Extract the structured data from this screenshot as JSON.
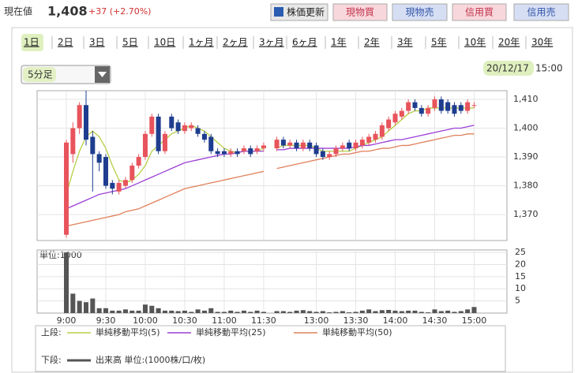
{
  "header": {
    "label": "現在値",
    "price": "1,408",
    "change": "+37 (+2.70%)"
  },
  "buttons": [
    "株価更新",
    "現物買",
    "現物売",
    "信用買",
    "信用売"
  ],
  "tabs": [
    "1日",
    "2日",
    "3日",
    "5日",
    "10日",
    "1ヶ月",
    "2ヶ月",
    "3ヶ月",
    "6ヶ月",
    "1年",
    "2年",
    "3年",
    "5年",
    "10年",
    "20年",
    "30年"
  ],
  "interval": "5分足",
  "date": "20/12/17",
  "time": "15:00",
  "chart_data": {
    "type": "candlestick",
    "categories": [
      "9:00",
      null,
      null,
      null,
      null,
      null,
      "9:30",
      null,
      null,
      null,
      null,
      null,
      "10:00",
      null,
      null,
      null,
      null,
      null,
      "10:30",
      null,
      null,
      null,
      null,
      null,
      "11:00",
      null,
      null,
      null,
      null,
      null,
      "11:30",
      null,
      null,
      null,
      null,
      null,
      null,
      null,
      "13:00",
      null,
      null,
      null,
      null,
      null,
      "13:30",
      null,
      null,
      null,
      null,
      null,
      "14:00",
      null,
      null,
      null,
      null,
      null,
      "14:30",
      null,
      null,
      null,
      null,
      null,
      "15:00"
    ],
    "open": [
      1363,
      1391,
      1400,
      1408,
      1397,
      1391,
      1390,
      1381,
      1378,
      1380,
      1382,
      1387,
      1390,
      1398,
      1404,
      1392,
      1404,
      1402,
      1399,
      1400,
      1400,
      1398,
      1397,
      1392,
      1392,
      1391,
      1392,
      1392,
      1393,
      1392,
      1393,
      null,
      1393,
      1396,
      1394,
      1395,
      1393,
      1395,
      1394,
      1392,
      1390,
      1391,
      1393,
      1395,
      1393,
      1394,
      1395,
      1396,
      1397,
      1400,
      1402,
      1404,
      1406,
      1409,
      1407,
      1405,
      1407,
      1410,
      1409,
      1408,
      1408,
      1406,
      1408
    ],
    "high": [
      1396,
      1402,
      1409,
      1413,
      1399,
      1392,
      1391,
      1382,
      1382,
      1383,
      1388,
      1391,
      1399,
      1405,
      1405,
      1399,
      1405,
      1403,
      1402,
      1402,
      1401,
      1399,
      1398,
      1393,
      1393,
      1393,
      1393,
      1394,
      1394,
      1394,
      1395,
      null,
      1397,
      1397,
      1396,
      1396,
      1396,
      1396,
      1395,
      1393,
      1392,
      1394,
      1395,
      1396,
      1396,
      1397,
      1398,
      1399,
      1402,
      1404,
      1406,
      1407,
      1410,
      1410,
      1408,
      1408,
      1411,
      1411,
      1410,
      1409,
      1409,
      1410,
      1409
    ],
    "low": [
      1362,
      1388,
      1398,
      1394,
      1378,
      1385,
      1379,
      1377,
      1377,
      1379,
      1381,
      1386,
      1389,
      1397,
      1391,
      1391,
      1399,
      1398,
      1398,
      1399,
      1397,
      1395,
      1391,
      1390,
      1390,
      1390,
      1390,
      1391,
      1390,
      1391,
      1392,
      null,
      1392,
      1393,
      1393,
      1392,
      1392,
      1392,
      1390,
      1389,
      1389,
      1390,
      1392,
      1392,
      1392,
      1393,
      1394,
      1395,
      1396,
      1399,
      1401,
      1403,
      1405,
      1406,
      1404,
      1404,
      1406,
      1405,
      1405,
      1404,
      1405,
      1405,
      1407
    ],
    "close": [
      1395,
      1400,
      1408,
      1396,
      1391,
      1388,
      1380,
      1379,
      1381,
      1382,
      1387,
      1390,
      1398,
      1404,
      1392,
      1398,
      1400,
      1399,
      1401,
      1401,
      1398,
      1396,
      1392,
      1391,
      1391,
      1392,
      1391,
      1393,
      1391,
      1393,
      1394,
      null,
      1396,
      1394,
      1395,
      1393,
      1395,
      1393,
      1391,
      1390,
      1391,
      1393,
      1394,
      1393,
      1395,
      1396,
      1397,
      1398,
      1401,
      1403,
      1405,
      1406,
      1409,
      1407,
      1405,
      1407,
      1410,
      1406,
      1406,
      1405,
      1406,
      1409,
      1408
    ],
    "up_color": "#e8545c",
    "down_color": "#1e3d8f",
    "ylim": [
      1361,
      1413
    ],
    "yticks": [
      {
        "value": 1370,
        "label": "1,370"
      },
      {
        "value": 1380,
        "label": "1,380"
      },
      {
        "value": 1390,
        "label": "1,390"
      },
      {
        "value": 1400,
        "label": "1,400"
      },
      {
        "value": 1410,
        "label": "1,410"
      }
    ],
    "upper_label": "上段:",
    "series": [
      {
        "name": "単純移動平均(5)",
        "color": "#b5cf45",
        "values": [
          1377,
          1385,
          1392,
          1397,
          1399,
          1397,
          1393,
          1387,
          1382,
          1381,
          1382,
          1384,
          1387,
          1392,
          1394,
          1396,
          1398,
          1399,
          1400,
          1401,
          1400,
          1399,
          1397,
          1395,
          1393,
          1392,
          1391.5,
          1392,
          1392,
          1392,
          1393,
          null,
          1393,
          1394,
          1394,
          1394,
          1394,
          1394,
          1393,
          1392,
          1392,
          1392,
          1392,
          1392,
          1393,
          1394,
          1395,
          1396,
          1397,
          1399,
          1401,
          1403,
          1405,
          1406,
          1406,
          1407,
          1407,
          1407,
          1407,
          1407,
          1407,
          1407,
          1407
        ]
      },
      {
        "name": "単純移動平均(25)",
        "color": "#9b3fd6",
        "values": [
          1372,
          1373,
          1374,
          1375,
          1376,
          1377,
          1377.5,
          1378,
          1378.5,
          1379,
          1380,
          1381,
          1382,
          1383,
          1384,
          1385,
          1386,
          1387,
          1388,
          1388.5,
          1389,
          1389.5,
          1390,
          1390.5,
          1391,
          1391,
          1391.5,
          1392,
          1392,
          1392,
          1392,
          null,
          1392.5,
          1392.5,
          1393,
          1393,
          1393,
          1393,
          1393,
          1393,
          1393,
          1393,
          1393,
          1393,
          1393.5,
          1394,
          1394,
          1394.5,
          1395,
          1395.5,
          1396,
          1396,
          1396.5,
          1397,
          1397.5,
          1398,
          1398.5,
          1399,
          1399.5,
          1400,
          1400,
          1400.5,
          1401
        ]
      },
      {
        "name": "単純移動平均(50)",
        "color": "#e0805a",
        "values": [
          1366,
          1366.5,
          1367,
          1367.5,
          1368,
          1368.5,
          1369,
          1369.5,
          1370,
          1371,
          1371.5,
          1372,
          1373,
          1374,
          1375,
          1376,
          1377,
          1378,
          1379,
          1379.5,
          1380,
          1380.5,
          1381,
          1381.5,
          1382,
          1382.5,
          1383,
          1383.5,
          1384,
          1384.5,
          1385,
          null,
          1386,
          1386.5,
          1387,
          1387.5,
          1388,
          1388.5,
          1389,
          1389.5,
          1390,
          1390.5,
          1391,
          1391,
          1391.5,
          1392,
          1392,
          1392.5,
          1393,
          1393,
          1393.5,
          1394,
          1394,
          1394.5,
          1395,
          1395.5,
          1396,
          1396.5,
          1397,
          1397.5,
          1397.5,
          1398,
          1398
        ]
      }
    ],
    "volume": {
      "unit_label": "単位:1000",
      "lower_label": "下段:",
      "name": "出来高 単位:(1000株/口/枚)",
      "color": "#555555",
      "ylim": [
        0,
        26
      ],
      "yticks": [
        5,
        10,
        15,
        20,
        25
      ],
      "values": [
        25,
        8,
        5,
        4.5,
        6,
        2,
        2,
        1,
        1,
        1.5,
        1,
        1,
        3.5,
        3,
        2,
        1,
        1,
        0.8,
        1,
        0.5,
        1.5,
        1,
        2,
        0.5,
        0.5,
        1,
        0.5,
        1,
        0.5,
        1,
        0.5,
        null,
        0.8,
        0.8,
        0.5,
        1,
        1.2,
        0.8,
        0.5,
        0.8,
        0.3,
        0.5,
        0.8,
        0.3,
        0.5,
        1,
        1.5,
        0.8,
        1.2,
        1.3,
        1,
        0.8,
        1,
        1,
        0.5,
        0.3,
        1.5,
        0.8,
        1,
        0.5,
        0.8,
        1.5,
        2.5
      ]
    }
  }
}
